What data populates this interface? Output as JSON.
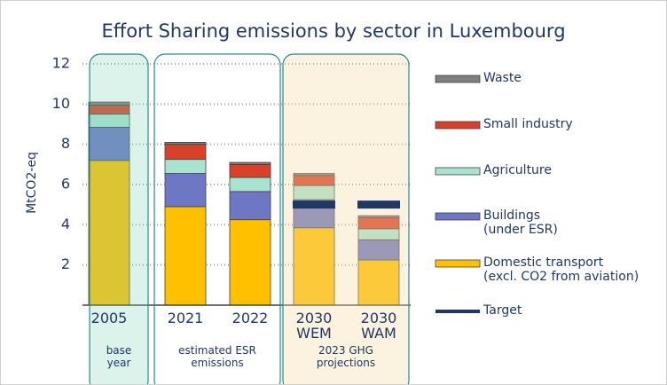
{
  "chart_data": {
    "type": "stacked-bar",
    "title": "Effort Sharing emissions by sector in Luxembourg",
    "y_label": "MtCO2-eq",
    "categories": [
      "2005",
      "2021",
      "2022",
      "2030\nWEM",
      "2030\nWAM"
    ],
    "groups": [
      {
        "label": "base\nyear",
        "members": [
          "2005"
        ]
      },
      {
        "label": "estimated ESR\nemissions",
        "members": [
          "2021",
          "2022"
        ]
      },
      {
        "label": "2023 GHG\nprojections",
        "members": [
          "2030\nWEM",
          "2030\nWAM"
        ]
      }
    ],
    "series": [
      {
        "name": "Domestic transport\n(excl. CO2 from aviation)",
        "color": "#ffc000",
        "values": [
          7.2,
          4.9,
          4.25,
          3.85,
          2.25
        ]
      },
      {
        "name": "Buildings\n(under ESR)",
        "color": "#6d77c4",
        "values": [
          1.65,
          1.65,
          1.4,
          1.4,
          1.0
        ]
      },
      {
        "name": "Agriculture",
        "color": "#a9e3cf",
        "values": [
          0.65,
          0.7,
          0.7,
          0.7,
          0.55
        ]
      },
      {
        "name": "Small industry",
        "color": "#d9402a",
        "values": [
          0.45,
          0.75,
          0.65,
          0.5,
          0.55
        ]
      },
      {
        "name": "Waste",
        "color": "#7f7f7f",
        "values": [
          0.15,
          0.1,
          0.1,
          0.1,
          0.1
        ]
      },
      {
        "name": "Target",
        "color": "#1f3864",
        "type": "line",
        "values": [
          null,
          null,
          null,
          5.0,
          5.0
        ]
      }
    ],
    "ylim": [
      0,
      12
    ],
    "yticks": [
      2,
      4,
      6,
      8,
      10,
      12
    ],
    "grid": true,
    "legend": "right"
  }
}
